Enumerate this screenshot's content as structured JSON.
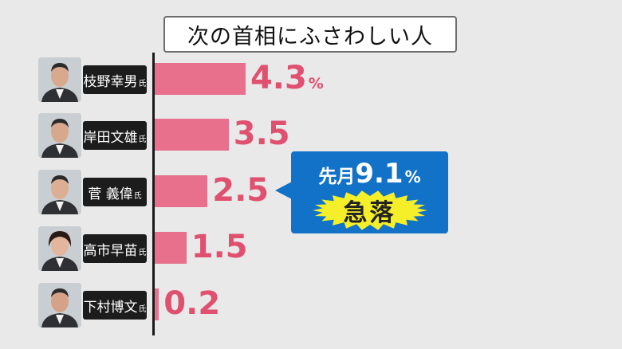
{
  "title": "次の首相にふさわしい人",
  "unit": "%",
  "colors": {
    "bar": "#e8708d",
    "value_text": "#e0506f",
    "callout_bg": "#1272c8",
    "burst": "#f5ef2a"
  },
  "chart_data": {
    "type": "bar",
    "orientation": "horizontal",
    "title": "次の首相にふさわしい人",
    "categories": [
      "枝野幸男氏",
      "岸田文雄氏",
      "菅 義偉氏",
      "高市早苗氏",
      "下村博文氏"
    ],
    "values": [
      4.3,
      3.5,
      2.5,
      1.5,
      0.2
    ],
    "value_labels": [
      "4.3",
      "3.5",
      "2.5",
      "1.5",
      "0.2"
    ],
    "xlim": [
      0,
      5.5
    ]
  },
  "people": [
    {
      "name": "枝野幸男",
      "suffix": "氏"
    },
    {
      "name": "岸田文雄",
      "suffix": "氏"
    },
    {
      "name": "菅 義偉",
      "suffix": "氏"
    },
    {
      "name": "高市早苗",
      "suffix": "氏"
    },
    {
      "name": "下村博文",
      "suffix": "氏"
    }
  ],
  "callout": {
    "prefix": "先月",
    "number": "9.1",
    "unit": "%",
    "label": "急落"
  }
}
